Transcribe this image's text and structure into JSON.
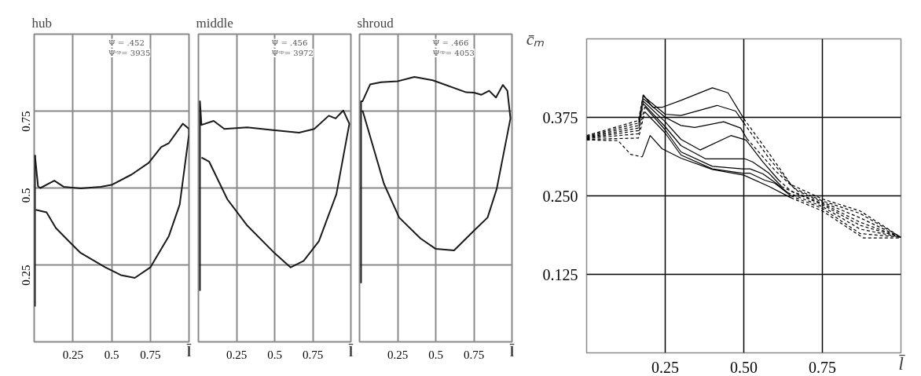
{
  "chart_data": [
    {
      "type": "line",
      "title": "hub",
      "xlabel": "l̄",
      "xlim": [
        0,
        1
      ],
      "ylim": [
        0,
        1
      ],
      "xticks": [
        0.25,
        0.5,
        0.75
      ],
      "yticks": [
        0.25,
        0.5,
        0.75
      ],
      "grid": true,
      "line_style": "solid",
      "annotations": [
        "Ψ = .452",
        "Ψᶜᵖ= 3935"
      ],
      "series": [
        {
          "color": "#1a1a1a",
          "x": [
            0.005,
            0.005
          ],
          "values": [
            0.115,
            0.607
          ]
        },
        {
          "color": "#1a1a1a",
          "x": [
            0.005,
            0.025,
            0.04,
            0.13,
            0.19,
            0.3,
            0.43,
            0.5,
            0.63,
            0.74,
            0.82,
            0.87,
            0.96,
            1.0,
            1.0,
            0.94,
            0.87,
            0.75,
            0.65,
            0.56,
            0.46,
            0.3,
            0.24,
            0.14,
            0.08,
            0.01
          ],
          "values": [
            0.607,
            0.505,
            0.5,
            0.524,
            0.504,
            0.499,
            0.504,
            0.51,
            0.544,
            0.582,
            0.633,
            0.646,
            0.709,
            0.692,
            0.675,
            0.446,
            0.344,
            0.242,
            0.208,
            0.217,
            0.242,
            0.289,
            0.319,
            0.37,
            0.421,
            0.429
          ]
        }
      ]
    },
    {
      "type": "line",
      "title": "middle",
      "xlabel": "l̄",
      "xlim": [
        0,
        1
      ],
      "ylim": [
        0,
        1
      ],
      "xticks": [
        0.25,
        0.5,
        0.75
      ],
      "yticks": [
        0.25,
        0.5,
        0.75
      ],
      "grid": true,
      "tick_labels": "x",
      "line_style": "solid",
      "annotations": [
        "Ψ = .456",
        "Ψᶜᵖ= 3972"
      ],
      "series": [
        {
          "color": "#1a1a1a",
          "x": [
            0.01,
            0.01,
            0.02,
            0.1,
            0.17,
            0.32,
            0.49,
            0.66,
            0.76,
            0.855,
            0.9,
            0.95,
            0.99,
            0.905,
            0.79,
            0.69,
            0.605,
            0.49,
            0.32,
            0.19,
            0.07,
            0.02
          ],
          "values": [
            0.166,
            0.782,
            0.705,
            0.718,
            0.692,
            0.697,
            0.688,
            0.68,
            0.692,
            0.735,
            0.726,
            0.752,
            0.709,
            0.48,
            0.327,
            0.263,
            0.242,
            0.293,
            0.378,
            0.463,
            0.586,
            0.599
          ]
        }
      ]
    },
    {
      "type": "line",
      "title": "shroud",
      "xlabel": "l̄",
      "xlim": [
        0,
        1
      ],
      "ylim": [
        0,
        1
      ],
      "xticks": [
        0.25,
        0.5,
        0.75
      ],
      "yticks": [
        0.25,
        0.5,
        0.75
      ],
      "grid": true,
      "tick_labels": "x",
      "line_style": "solid",
      "annotations": [
        "Ψ = .466",
        "Ψᶜᵖ= 4053"
      ],
      "series": [
        {
          "color": "#1a1a1a",
          "x": [
            0.01,
            0.01,
            0.02,
            0.07,
            0.14,
            0.25,
            0.36,
            0.48,
            0.7,
            0.75,
            0.8,
            0.85,
            0.895,
            0.94,
            0.97,
            0.99,
            0.9,
            0.84,
            0.75,
            0.62,
            0.5,
            0.4,
            0.26,
            0.16,
            0.02
          ],
          "values": [
            0.191,
            0.782,
            0.782,
            0.837,
            0.844,
            0.847,
            0.861,
            0.85,
            0.811,
            0.81,
            0.803,
            0.816,
            0.794,
            0.835,
            0.816,
            0.726,
            0.497,
            0.404,
            0.361,
            0.297,
            0.302,
            0.336,
            0.404,
            0.514,
            0.752
          ]
        }
      ]
    },
    {
      "type": "line",
      "xlabel": "l̄",
      "ylabel": "c̄ₘ",
      "xlim": [
        0,
        1
      ],
      "ylim": [
        0,
        0.5
      ],
      "xticks": [
        0.25,
        {
          "value": 0.5,
          "label": "0.50"
        },
        0.75
      ],
      "yticks": [
        0.125,
        {
          "value": 0.25,
          "label": "0.250"
        },
        0.375
      ],
      "grid": true,
      "series": [
        {
          "color": "#000000",
          "line_style": "dashed",
          "x": [
            0,
            0.165,
            0.18
          ],
          "values": [
            0.346,
            0.37,
            0.411
          ]
        },
        {
          "color": "#000000",
          "line_style": "solid",
          "x": [
            0.18,
            0.21,
            0.24,
            0.3,
            0.4,
            0.45,
            0.5
          ],
          "values": [
            0.411,
            0.391,
            0.391,
            0.402,
            0.422,
            0.414,
            0.373
          ]
        },
        {
          "color": "#000000",
          "line_style": "dashed",
          "x": [
            0.5,
            0.58,
            0.65,
            0.75,
            0.87,
            1
          ],
          "values": [
            0.373,
            0.318,
            0.268,
            0.245,
            0.226,
            0.184
          ]
        },
        {
          "color": "#000000",
          "line_style": "dashed",
          "x": [
            0,
            0.165,
            0.18
          ],
          "values": [
            0.345,
            0.366,
            0.409
          ]
        },
        {
          "color": "#000000",
          "line_style": "solid",
          "x": [
            0.18,
            0.25,
            0.3,
            0.415,
            0.474,
            0.5
          ],
          "values": [
            0.409,
            0.38,
            0.378,
            0.394,
            0.385,
            0.366
          ]
        },
        {
          "color": "#000000",
          "line_style": "dashed",
          "x": [
            0.5,
            0.58,
            0.66,
            0.75,
            0.87,
            1
          ],
          "values": [
            0.366,
            0.31,
            0.262,
            0.242,
            0.222,
            0.184
          ]
        },
        {
          "color": "#000000",
          "line_style": "dashed",
          "x": [
            0,
            0.165,
            0.18
          ],
          "values": [
            0.344,
            0.362,
            0.405
          ]
        },
        {
          "color": "#000000",
          "line_style": "solid",
          "x": [
            0.18,
            0.25,
            0.3,
            0.344,
            0.436,
            0.49,
            0.51
          ],
          "values": [
            0.405,
            0.375,
            0.362,
            0.359,
            0.368,
            0.358,
            0.341
          ]
        },
        {
          "color": "#000000",
          "line_style": "dashed",
          "x": [
            0.51,
            0.6,
            0.67,
            0.75,
            0.87,
            1
          ],
          "values": [
            0.341,
            0.29,
            0.258,
            0.24,
            0.215,
            0.184
          ]
        },
        {
          "color": "#000000",
          "line_style": "dashed",
          "x": [
            0,
            0.165,
            0.18
          ],
          "values": [
            0.343,
            0.358,
            0.401
          ]
        },
        {
          "color": "#000000",
          "line_style": "solid",
          "x": [
            0.18,
            0.25,
            0.3,
            0.361,
            0.459,
            0.507,
            0.561,
            0.611
          ],
          "values": [
            0.401,
            0.368,
            0.34,
            0.323,
            0.346,
            0.339,
            0.304,
            0.275
          ]
        },
        {
          "color": "#000000",
          "line_style": "dashed",
          "x": [
            0.611,
            0.65,
            0.75,
            0.87,
            1
          ],
          "values": [
            0.275,
            0.258,
            0.238,
            0.208,
            0.184
          ]
        },
        {
          "color": "#000000",
          "line_style": "dashed",
          "x": [
            0,
            0.165,
            0.18
          ],
          "values": [
            0.342,
            0.354,
            0.397
          ]
        },
        {
          "color": "#000000",
          "line_style": "solid",
          "x": [
            0.18,
            0.25,
            0.3,
            0.378,
            0.503,
            0.528,
            0.578,
            0.62
          ],
          "values": [
            0.397,
            0.36,
            0.33,
            0.309,
            0.309,
            0.304,
            0.287,
            0.265
          ]
        },
        {
          "color": "#000000",
          "line_style": "dashed",
          "x": [
            0.62,
            0.66,
            0.75,
            0.87,
            1
          ],
          "values": [
            0.265,
            0.255,
            0.236,
            0.203,
            0.184
          ]
        },
        {
          "color": "#000000",
          "line_style": "dashed",
          "x": [
            0,
            0.165,
            0.185
          ],
          "values": [
            0.341,
            0.349,
            0.392
          ]
        },
        {
          "color": "#000000",
          "line_style": "solid",
          "x": [
            0.185,
            0.25,
            0.3,
            0.4,
            0.495,
            0.52,
            0.561,
            0.603,
            0.64
          ],
          "values": [
            0.392,
            0.355,
            0.32,
            0.297,
            0.293,
            0.293,
            0.285,
            0.27,
            0.255
          ]
        },
        {
          "color": "#000000",
          "line_style": "dashed",
          "x": [
            0.64,
            0.75,
            0.87,
            1
          ],
          "values": [
            0.255,
            0.233,
            0.197,
            0.184
          ]
        },
        {
          "color": "#000000",
          "line_style": "dashed",
          "x": [
            0,
            0.165,
            0.185
          ],
          "values": [
            0.34,
            0.342,
            0.384
          ]
        },
        {
          "color": "#000000",
          "line_style": "solid",
          "x": [
            0.185,
            0.25,
            0.3,
            0.4,
            0.495,
            0.52,
            0.566,
            0.599,
            0.65
          ],
          "values": [
            0.384,
            0.35,
            0.315,
            0.293,
            0.286,
            0.286,
            0.275,
            0.27,
            0.25
          ]
        },
        {
          "color": "#000000",
          "line_style": "dashed",
          "x": [
            0.65,
            0.75,
            0.87,
            1
          ],
          "values": [
            0.25,
            0.23,
            0.19,
            0.184
          ]
        },
        {
          "color": "#000000",
          "line_style": "dashed",
          "x": [
            0,
            0.1,
            0.14,
            0.177
          ],
          "values": [
            0.339,
            0.338,
            0.316,
            0.312
          ]
        },
        {
          "color": "#000000",
          "line_style": "solid",
          "x": [
            0.177,
            0.202,
            0.24,
            0.3,
            0.4,
            0.5,
            0.58,
            0.65
          ],
          "values": [
            0.312,
            0.346,
            0.325,
            0.31,
            0.292,
            0.283,
            0.265,
            0.247
          ]
        },
        {
          "color": "#000000",
          "line_style": "dashed",
          "x": [
            0.65,
            0.75,
            0.88,
            1
          ],
          "values": [
            0.247,
            0.226,
            0.183,
            0.183
          ]
        }
      ]
    }
  ]
}
